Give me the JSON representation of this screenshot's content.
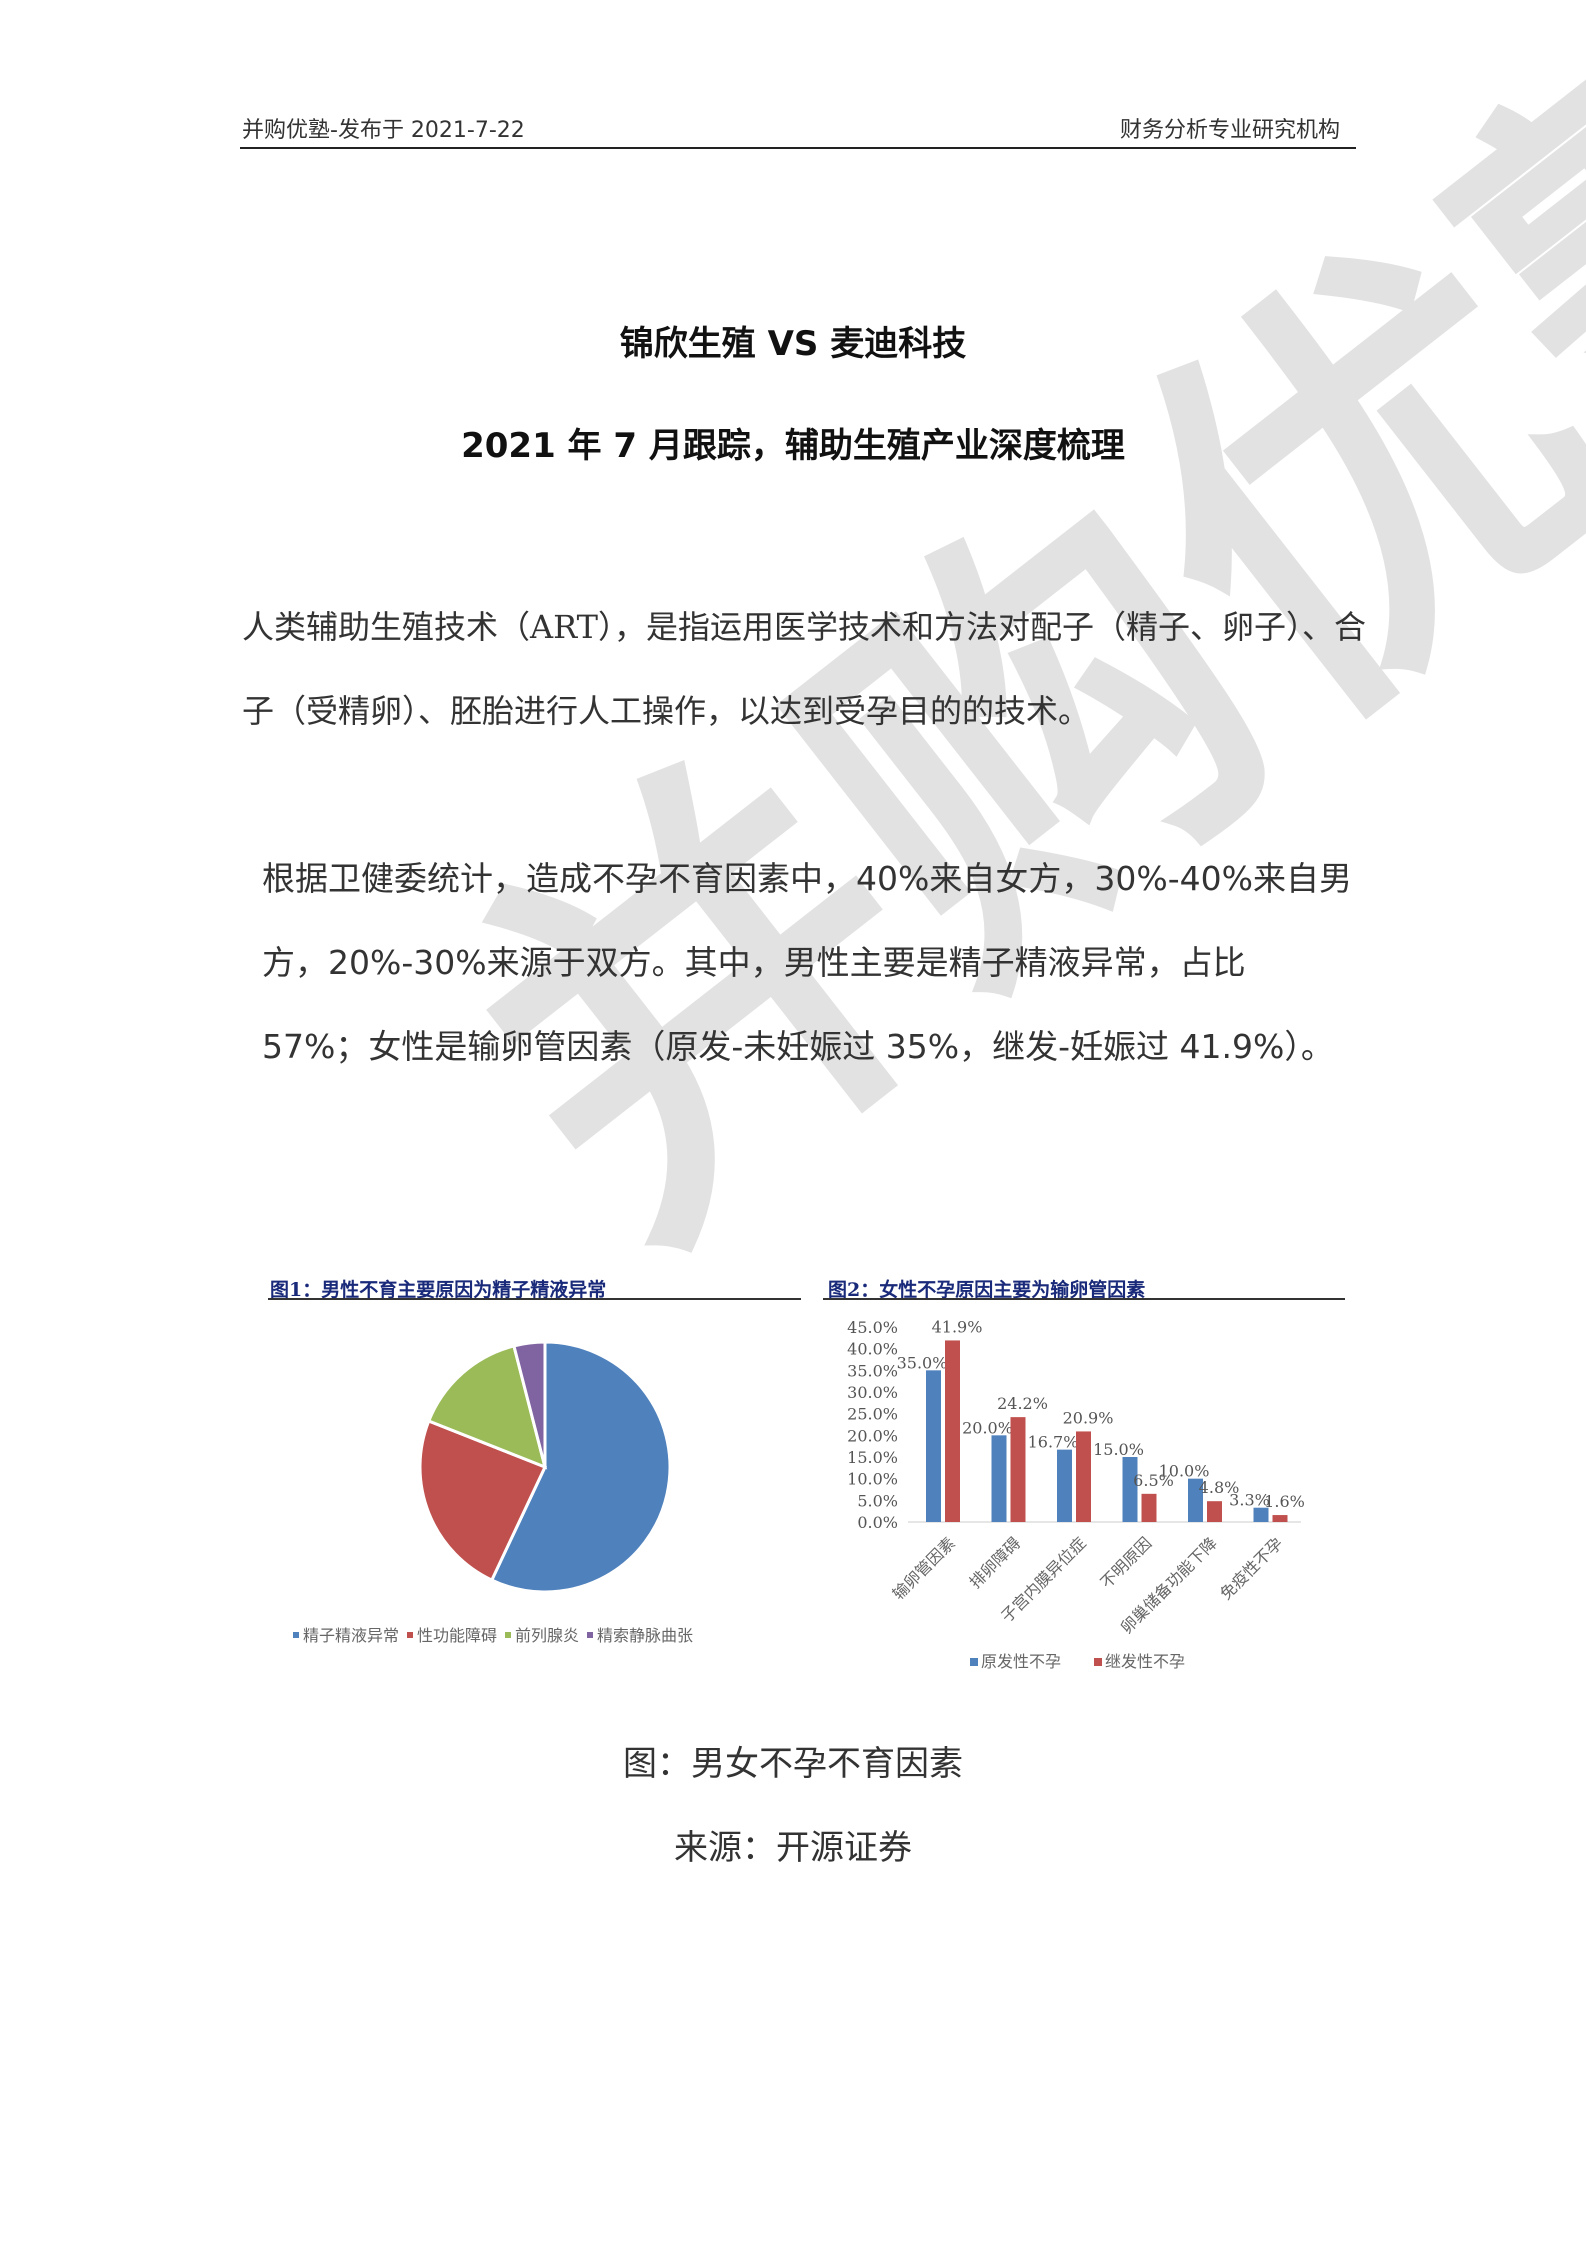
{
  "header": {
    "left": "并购优塾-发布于 2021-7-22",
    "right": "财务分析专业研究机构"
  },
  "title": "锦欣生殖 VS 麦迪科技",
  "subtitle": "2021 年 7 月跟踪，辅助生殖产业深度梳理",
  "paragraph1": "人类辅助生殖技术（ART），是指运用医学技术和方法对配子（精子、卵子）、合子（受精卵）、胚胎进行人工操作，以达到受孕目的的技术。",
  "paragraph2": "根据卫健委统计，造成不孕不育因素中，40%来自女方，30%-40%来自男方，20%-30%来源于双方。其中，男性主要是精子精液异常，占比 57%；女性是输卵管因素（原发-未妊娠过 35%，继发-妊娠过 41.9%）。",
  "watermark": "并购优塾",
  "chart_data": [
    {
      "type": "pie",
      "title": "图1：男性不育主要原因为精子精液异常",
      "categories": [
        "精子精液异常",
        "性功能障碍",
        "前列腺炎",
        "精索静脉曲张"
      ],
      "values": [
        57,
        24,
        15,
        4
      ],
      "colors": [
        "#4f81bd",
        "#c0504d",
        "#9bbb59",
        "#8064a2"
      ],
      "legend": "bottom"
    },
    {
      "type": "bar",
      "title": "图2：女性不孕原因主要为输卵管因素",
      "categories": [
        "输卵管因素",
        "排卵障碍",
        "子宫内膜异位症",
        "不明原因",
        "卵巢储备功能下降",
        "免疫性不孕"
      ],
      "series": [
        {
          "name": "原发性不孕",
          "values": [
            35.0,
            20.0,
            16.7,
            15.0,
            10.0,
            3.3
          ],
          "color": "#4f81bd"
        },
        {
          "name": "继发性不孕",
          "values": [
            41.9,
            24.2,
            20.9,
            6.5,
            4.8,
            1.6
          ],
          "color": "#c0504d"
        }
      ],
      "yticks": [
        "0.0%",
        "5.0%",
        "10.0%",
        "15.0%",
        "20.0%",
        "25.0%",
        "30.0%",
        "35.0%",
        "40.0%",
        "45.0%"
      ],
      "ylim": [
        0,
        45
      ],
      "grid": false,
      "legend": "bottom"
    }
  ],
  "caption": "图：男女不孕不育因素",
  "source": "来源：开源证券"
}
